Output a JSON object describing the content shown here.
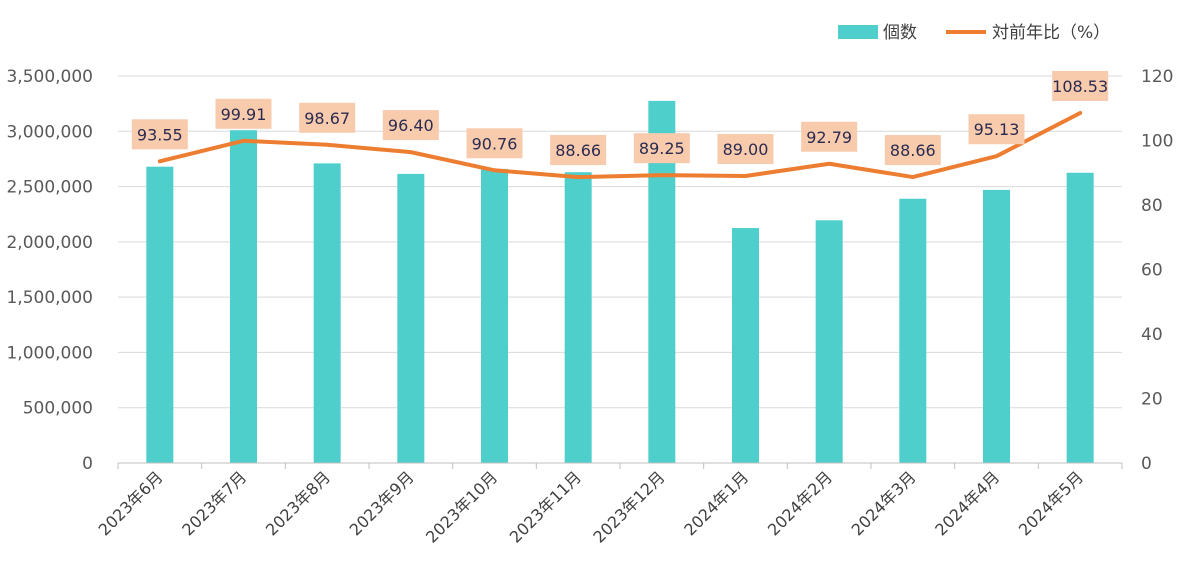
{
  "chart_data": {
    "type": "bar",
    "categories": [
      "2023年6月",
      "2023年7月",
      "2023年8月",
      "2023年9月",
      "2023年10月",
      "2023年11月",
      "2023年12月",
      "2024年1月",
      "2024年2月",
      "2024年3月",
      "2024年4月",
      "2024年5月"
    ],
    "series": [
      {
        "name": "個数",
        "type": "bar",
        "axis": "left",
        "color": "#4ecfcc",
        "values": [
          2680000,
          3010000,
          2710000,
          2615000,
          2660000,
          2630000,
          3275000,
          2125000,
          2195000,
          2390000,
          2470000,
          2625000
        ]
      },
      {
        "name": "対前年比（%）",
        "type": "line",
        "axis": "right",
        "color": "#ed7d31",
        "values": [
          93.55,
          99.91,
          98.67,
          96.4,
          90.76,
          88.66,
          89.25,
          89.0,
          92.79,
          88.66,
          95.13,
          108.53
        ],
        "data_labels": [
          "93.55",
          "99.91",
          "98.67",
          "96.40",
          "90.76",
          "88.66",
          "89.25",
          "89.00",
          "92.79",
          "88.66",
          "95.13",
          "108.53"
        ],
        "label_fill": "#f8cbad"
      }
    ],
    "y_left": {
      "ylim": [
        0,
        3500000
      ],
      "ticks": [
        "0",
        "500,000",
        "1,000,000",
        "1,500,000",
        "2,000,000",
        "2,500,000",
        "3,000,000",
        "3,500,000"
      ],
      "tick_values": [
        0,
        500000,
        1000000,
        1500000,
        2000000,
        2500000,
        3000000,
        3500000
      ]
    },
    "y_right": {
      "ylim": [
        0,
        120
      ],
      "ticks": [
        "0",
        "20",
        "40",
        "60",
        "80",
        "100",
        "120"
      ],
      "tick_values": [
        0,
        20,
        40,
        60,
        80,
        100,
        120
      ]
    },
    "grid": true,
    "legend_position": "top-right",
    "title": "",
    "xlabel": "",
    "ylabel": ""
  }
}
